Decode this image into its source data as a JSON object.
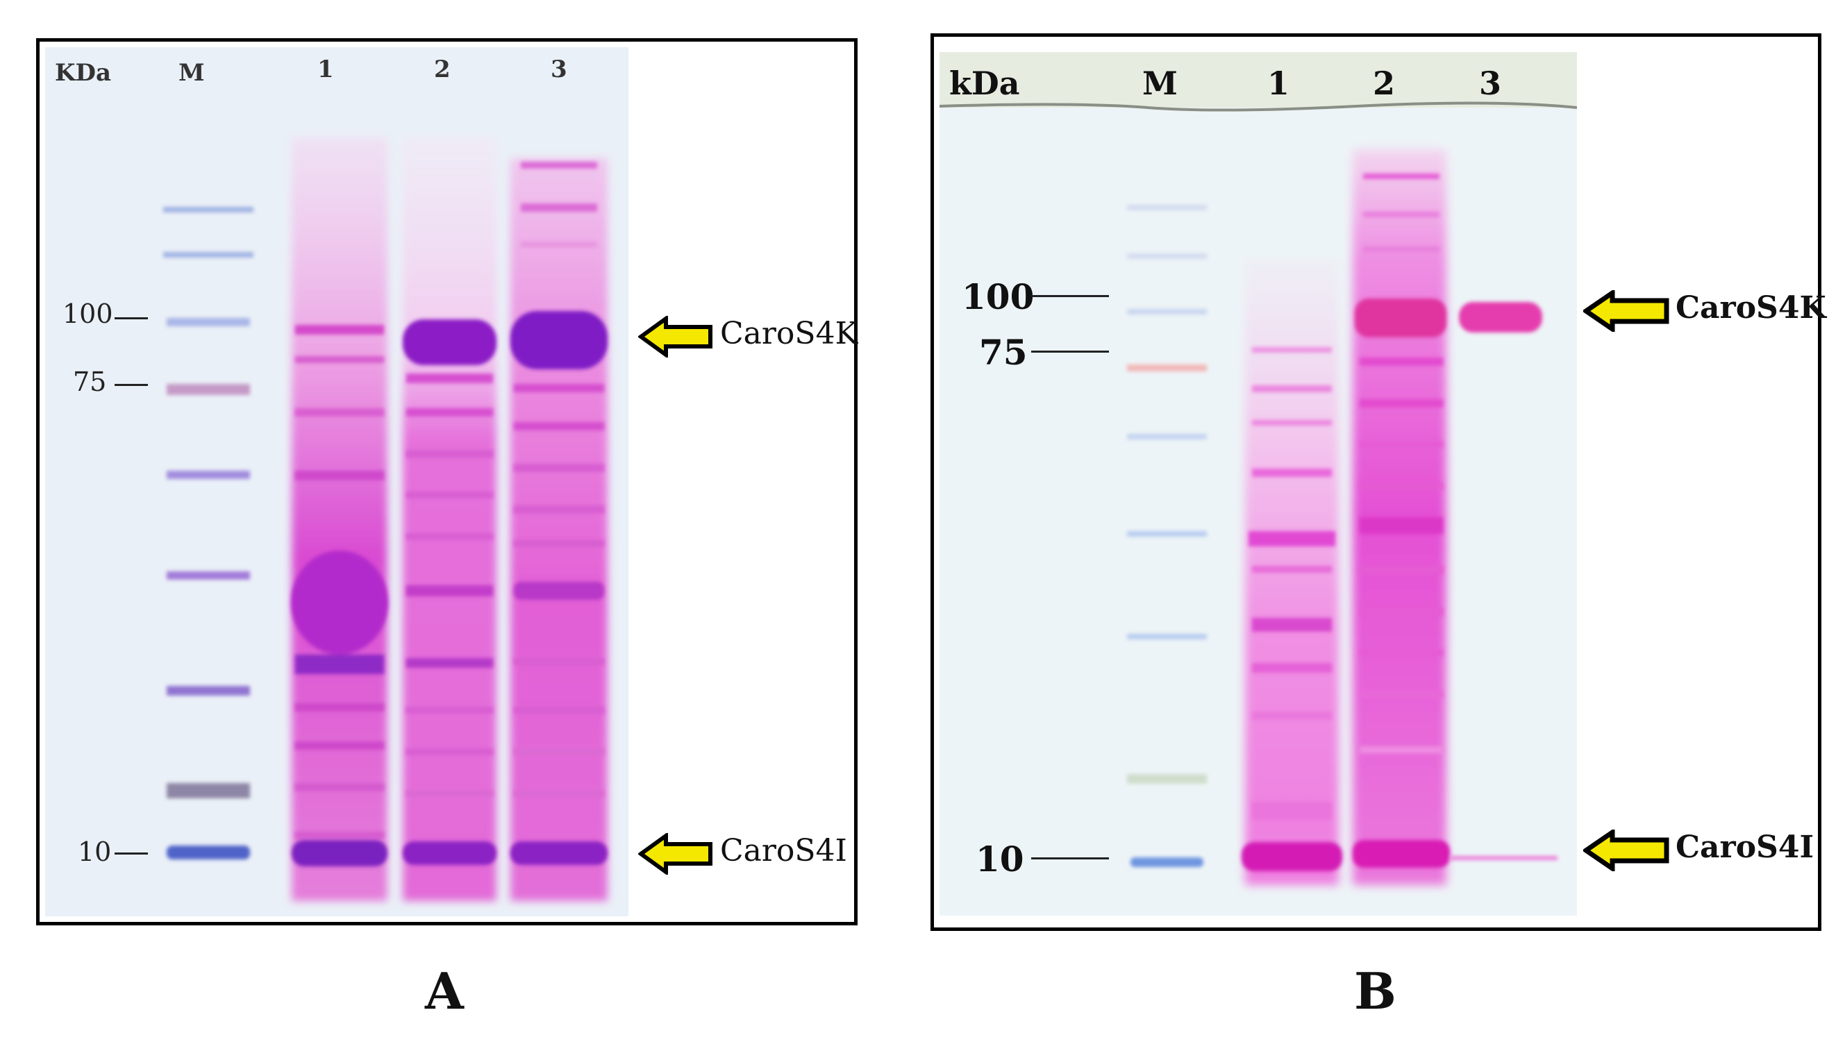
{
  "panels": [
    {
      "letter": "A",
      "unit": "KDa",
      "lanes": [
        "M",
        "1",
        "2",
        "3"
      ],
      "markers": [
        "100",
        "75",
        "10"
      ],
      "labels": [
        "CaroS4K",
        "CaroS4I"
      ]
    },
    {
      "letter": "B",
      "unit": "kDa",
      "lanes": [
        "M",
        "1",
        "2",
        "3"
      ],
      "markers": [
        "100",
        "75",
        "10"
      ],
      "labels": [
        "CaroS4K",
        "CaroS4I"
      ]
    }
  ],
  "colors": {
    "stain": "#e23fb7",
    "strong_band": "#8a1fc8",
    "marker_band": "#7f97d6",
    "arrow_fill": "#f5e800",
    "frame": "#000000"
  }
}
